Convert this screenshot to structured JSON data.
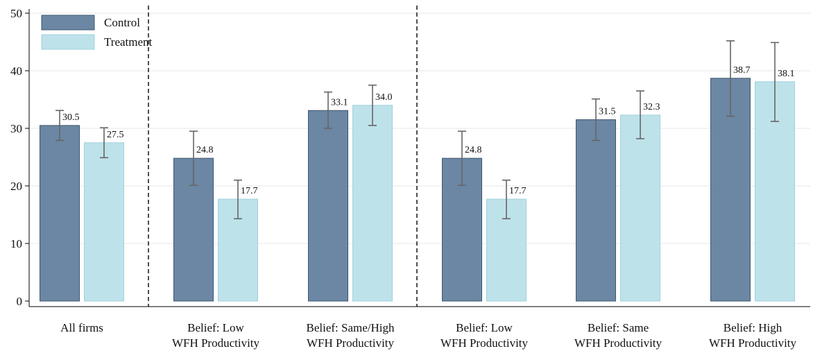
{
  "chart_data": {
    "type": "bar",
    "categories": [
      [
        "All firms"
      ],
      [
        "Belief: Low",
        "WFH Productivity"
      ],
      [
        "Belief: Same/High",
        "WFH Productivity"
      ],
      [
        "Belief: Low",
        "WFH Productivity"
      ],
      [
        "Belief: Same",
        "WFH Productivity"
      ],
      [
        "Belief: High",
        "WFH Productivity"
      ]
    ],
    "series": [
      {
        "name": "Control",
        "color": "#6b87a3",
        "values": [
          30.5,
          24.8,
          33.1,
          24.8,
          31.5,
          38.7
        ],
        "labels": [
          "30.5",
          "24.8",
          "33.1",
          "24.8",
          "31.5",
          "38.7"
        ],
        "ci_low": [
          27.9,
          20.1,
          30.0,
          20.1,
          27.9,
          32.1
        ],
        "ci_high": [
          33.1,
          29.5,
          36.3,
          29.5,
          35.1,
          45.2
        ]
      },
      {
        "name": "Treatment",
        "color": "#bee2ea",
        "values": [
          27.5,
          17.7,
          34.0,
          17.7,
          32.3,
          38.1
        ],
        "labels": [
          "27.5",
          "17.7",
          "34.0",
          "17.7",
          "32.3",
          "38.1"
        ],
        "ci_low": [
          24.9,
          14.3,
          30.5,
          14.3,
          28.2,
          31.2
        ],
        "ci_high": [
          30.1,
          21.0,
          37.5,
          21.0,
          36.5,
          44.9
        ]
      }
    ],
    "ylim": [
      0,
      50
    ],
    "yticks": [
      "0",
      "10",
      "20",
      "30",
      "40",
      "50"
    ],
    "grid": true,
    "legend": "top-left",
    "separators_after_category": [
      0,
      2
    ],
    "title": "",
    "xlabel": "",
    "ylabel": ""
  }
}
